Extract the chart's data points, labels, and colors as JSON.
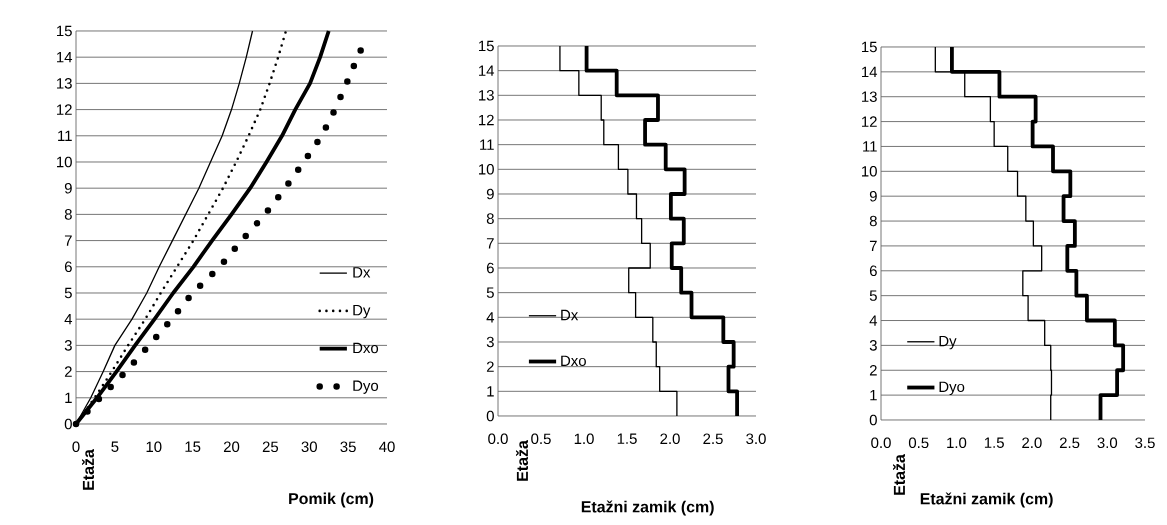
{
  "chart_data": [
    {
      "type": "line",
      "xlabel": "Pomik (cm)",
      "ylabel": "Etaža",
      "xlim": [
        0,
        40
      ],
      "xticks": [
        0,
        5,
        10,
        15,
        20,
        25,
        30,
        35,
        40
      ],
      "ylim": [
        0,
        15
      ],
      "yticks": [
        0,
        1,
        2,
        3,
        4,
        5,
        6,
        7,
        8,
        9,
        10,
        11,
        12,
        13,
        14,
        15
      ],
      "grid": "y",
      "legend": "bottom right",
      "marker": "none",
      "series": [
        {
          "name": "Dx",
          "color": "#000000",
          "line_style": "solid",
          "x": [
            0,
            1.9,
            3.5,
            5.0,
            7.2,
            9.1,
            10.7,
            12.4,
            14.1,
            15.8,
            17.3,
            18.8,
            20.0,
            21.0,
            21.9,
            22.7
          ],
          "values": [
            0,
            1,
            2,
            3,
            4,
            5,
            6,
            7,
            8,
            9,
            10,
            11,
            12,
            13,
            14,
            15
          ]
        },
        {
          "name": "Dy",
          "color": "#000000",
          "line_style": "dotted",
          "x": [
            0,
            2.4,
            4.6,
            6.7,
            8.9,
            10.9,
            13.0,
            15.1,
            17.0,
            18.9,
            20.6,
            22.2,
            23.7,
            24.9,
            26.0,
            27.0
          ],
          "values": [
            0,
            1,
            2,
            3,
            4,
            5,
            6,
            7,
            8,
            9,
            10,
            11,
            12,
            13,
            14,
            15
          ]
        },
        {
          "name": "Dxo",
          "color": "#000000",
          "line_style": "solid",
          "x": [
            0,
            2.7,
            5.2,
            7.6,
            10.1,
            12.5,
            15.1,
            17.5,
            20.0,
            22.4,
            24.5,
            26.5,
            28.2,
            30.1,
            31.4,
            32.5
          ],
          "values": [
            0,
            1,
            2,
            3,
            4,
            5,
            6,
            7,
            8,
            9,
            10,
            11,
            12,
            13,
            14,
            15
          ]
        },
        {
          "name": "Dyo",
          "color": "#000000",
          "line_style": "dotted",
          "x": [
            0,
            3.1,
            6.4,
            9.4,
            12.3,
            15.0,
            18.5,
            21.3,
            24.3,
            26.9,
            29.3,
            31.6,
            33.3,
            34.8,
            36.2,
            37.0
          ],
          "values": [
            0,
            1,
            2,
            3,
            4,
            5,
            6,
            7,
            8,
            9,
            10,
            11,
            12,
            13,
            14,
            14.5
          ]
        }
      ]
    },
    {
      "type": "step",
      "xlabel": "Etažni zamik (cm)",
      "ylabel": "Etaža",
      "xlim": [
        0,
        3
      ],
      "xticks": [
        {
          "value": 0,
          "label": "0.0"
        },
        {
          "value": 0.5,
          "label": "0.5"
        },
        {
          "value": 1,
          "label": "1.0"
        },
        {
          "value": 1.5,
          "label": "1.5"
        },
        {
          "value": 2,
          "label": "2.0"
        },
        {
          "value": 2.5,
          "label": "2.5"
        },
        {
          "value": 3,
          "label": "3.0"
        }
      ],
      "ylim": [
        0,
        15
      ],
      "yticks": [
        0,
        1,
        2,
        3,
        4,
        5,
        6,
        7,
        8,
        9,
        10,
        11,
        12,
        13,
        14,
        15
      ],
      "grid": "y",
      "legend": "bottom left",
      "series": [
        {
          "name": "Dx",
          "color": "#000000",
          "x": [
            2.08,
            1.88,
            1.84,
            1.8,
            1.6,
            1.52,
            1.77,
            1.67,
            1.61,
            1.51,
            1.4,
            1.23,
            1.2,
            0.94,
            0.72,
            0.72
          ],
          "values": [
            0,
            1,
            2,
            3,
            4,
            5,
            6,
            7,
            8,
            9,
            10,
            11,
            12,
            13,
            14,
            15
          ]
        },
        {
          "name": "Dxo",
          "color": "#000000",
          "x": [
            2.78,
            2.68,
            2.74,
            2.62,
            2.25,
            2.13,
            2.02,
            2.16,
            2.01,
            2.17,
            1.95,
            1.71,
            1.86,
            1.38,
            1.03,
            1.03
          ],
          "values": [
            0,
            1,
            2,
            3,
            4,
            5,
            6,
            7,
            8,
            9,
            10,
            11,
            12,
            13,
            14,
            15
          ]
        }
      ]
    },
    {
      "type": "step",
      "xlabel": "Etažni zamik (cm)",
      "ylabel": "Etaža",
      "xlim": [
        0,
        3.5
      ],
      "xticks": [
        {
          "value": 0,
          "label": "0.0"
        },
        {
          "value": 0.5,
          "label": "0.5"
        },
        {
          "value": 1,
          "label": "1.0"
        },
        {
          "value": 1.5,
          "label": "1.5"
        },
        {
          "value": 2,
          "label": "2.0"
        },
        {
          "value": 2.5,
          "label": "2.5"
        },
        {
          "value": 3,
          "label": "3.0"
        },
        {
          "value": 3.5,
          "label": "3.5"
        }
      ],
      "ylim": [
        0,
        15
      ],
      "yticks": [
        0,
        1,
        2,
        3,
        4,
        5,
        6,
        7,
        8,
        9,
        10,
        11,
        12,
        13,
        14,
        15
      ],
      "grid": "y",
      "legend": "bottom left",
      "series": [
        {
          "name": "Dy",
          "color": "#000000",
          "x": [
            2.25,
            2.26,
            2.25,
            2.17,
            1.95,
            1.88,
            2.13,
            2.02,
            1.92,
            1.81,
            1.68,
            1.5,
            1.45,
            1.11,
            0.72,
            0.72
          ],
          "values": [
            0,
            1,
            2,
            3,
            4,
            5,
            6,
            7,
            8,
            9,
            10,
            11,
            12,
            13,
            14,
            15
          ]
        },
        {
          "name": "Dyo",
          "color": "#000000",
          "x": [
            2.91,
            3.13,
            3.21,
            3.1,
            2.73,
            2.59,
            2.47,
            2.57,
            2.42,
            2.51,
            2.28,
            2.01,
            2.05,
            1.57,
            0.94,
            0.94
          ],
          "values": [
            0,
            1,
            2,
            3,
            4,
            5,
            6,
            7,
            8,
            9,
            10,
            11,
            12,
            13,
            14,
            15
          ]
        }
      ]
    }
  ]
}
